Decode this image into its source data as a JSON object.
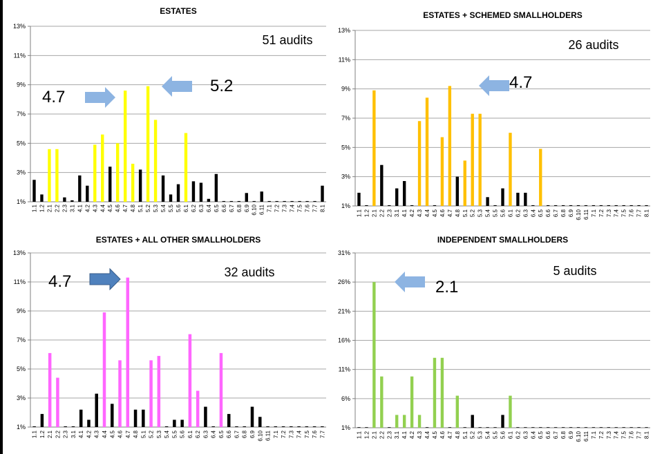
{
  "chart_data": [
    {
      "id": "c1",
      "type": "bar",
      "title": "ESTATES",
      "note": "51 audits",
      "highlight_color": "#ffff00",
      "y_ticks": [
        "13%",
        "11%",
        "9%",
        "7%",
        "5%",
        "3%",
        "1%"
      ],
      "ylim": [
        1,
        13
      ],
      "categories": [
        "1.1",
        "1.2",
        "2.1",
        "2.2",
        "2.3",
        "3.1",
        "4.1",
        "4.2",
        "4.3",
        "4.4",
        "4.5",
        "4.6",
        "4.7",
        "4.8",
        "5.1",
        "5.2",
        "5.3",
        "5.4",
        "5.5",
        "5.6",
        "6.1",
        "6.2",
        "6.3",
        "6.4",
        "6.5",
        "6.6",
        "6.7",
        "6.8",
        "6.9",
        "6.10",
        "6.11",
        "7.1",
        "7.2",
        "7.3",
        "7.4",
        "7.5",
        "7.6",
        "7.7",
        "8.1"
      ],
      "values": [
        2.5,
        1.5,
        4.6,
        4.6,
        1.3,
        1.1,
        2.8,
        2.1,
        4.9,
        5.6,
        3.4,
        5.0,
        8.6,
        3.6,
        3.2,
        8.9,
        6.6,
        2.8,
        1.5,
        2.2,
        5.7,
        2.4,
        2.3,
        1.2,
        2.9,
        1.05,
        1.05,
        1.05,
        1.6,
        1.05,
        1.7,
        1.05,
        1.05,
        1.05,
        1.05,
        1.05,
        1.05,
        1.05,
        2.1
      ],
      "highlight": [
        false,
        false,
        true,
        true,
        false,
        false,
        false,
        false,
        true,
        true,
        false,
        true,
        true,
        true,
        false,
        true,
        true,
        false,
        false,
        false,
        true,
        false,
        false,
        false,
        false,
        false,
        false,
        false,
        false,
        false,
        false,
        false,
        false,
        false,
        false,
        false,
        false,
        false,
        false
      ],
      "annotations": [
        {
          "text": "4.7",
          "arrow": "right",
          "arrow_color": "#8db4e2"
        },
        {
          "text": "5.2",
          "arrow": "left",
          "arrow_color": "#8db4e2"
        }
      ]
    },
    {
      "id": "c2",
      "type": "bar",
      "title": "ESTATES + SCHEMED SMALLHOLDERS",
      "note": "26 audits",
      "highlight_color": "#ffc000",
      "y_ticks": [
        "13%",
        "11%",
        "9%",
        "7%",
        "5%",
        "3%",
        "1%"
      ],
      "ylim": [
        1,
        13
      ],
      "categories": [
        "1.1",
        "1.2",
        "2.1",
        "2.2",
        "2.3",
        "3.1",
        "4.1",
        "4.2",
        "4.3",
        "4.4",
        "4.5",
        "4.6",
        "4.7",
        "4.8",
        "5.1",
        "5.2",
        "5.3",
        "5.4",
        "5.5",
        "5.6",
        "6.1",
        "6.2",
        "6.3",
        "6.4",
        "6.5",
        "6.6",
        "6.7",
        "6.8",
        "6.9",
        "6.10",
        "6.11",
        "7.1",
        "7.2",
        "7.3",
        "7.4",
        "7.5",
        "7.6",
        "7.7",
        "8.1"
      ],
      "values": [
        1.9,
        1.05,
        8.9,
        3.8,
        1.05,
        2.2,
        2.7,
        1.05,
        6.8,
        8.4,
        1.05,
        5.7,
        9.2,
        3.0,
        4.1,
        7.3,
        7.3,
        1.6,
        1.05,
        2.2,
        6.0,
        1.9,
        1.9,
        1.05,
        4.9,
        1.05,
        1.05,
        1.05,
        1.05,
        1.05,
        1.05,
        1.05,
        1.05,
        1.05,
        1.05,
        1.05,
        1.05,
        1.05,
        1.05
      ],
      "highlight": [
        false,
        false,
        true,
        false,
        false,
        false,
        false,
        false,
        true,
        true,
        false,
        true,
        true,
        false,
        true,
        true,
        true,
        false,
        false,
        false,
        true,
        false,
        false,
        false,
        true,
        false,
        false,
        false,
        false,
        false,
        false,
        false,
        false,
        false,
        false,
        false,
        false,
        false,
        false
      ],
      "annotations": [
        {
          "text": "4.7",
          "arrow": "left",
          "arrow_color": "#8db4e2"
        }
      ]
    },
    {
      "id": "c3",
      "type": "bar",
      "title": "ESTATES + ALL OTHER SMALLHOLDERS",
      "note": "32 audits",
      "highlight_color": "#ff66ff",
      "y_ticks": [
        "13%",
        "11%",
        "9%",
        "7%",
        "5%",
        "3%",
        "1%"
      ],
      "ylim": [
        1,
        13
      ],
      "categories": [
        "1.1",
        "1.2",
        "2.1",
        "2.2",
        "2.3",
        "3.1",
        "4.1",
        "4.2",
        "4.3",
        "4.4",
        "4.5",
        "4.6",
        "4.7",
        "4.8",
        "5.1",
        "5.2",
        "5.3",
        "5.4",
        "5.5",
        "5.6",
        "6.1",
        "6.2",
        "6.3",
        "6.4",
        "6.5",
        "6.6",
        "6.7",
        "6.8",
        "6.9",
        "6.10",
        "6.11",
        "7.1",
        "7.2",
        "7.3",
        "7.4",
        "7.5",
        "7.6",
        "7.7"
      ],
      "values": [
        1.05,
        1.9,
        6.1,
        4.4,
        1.05,
        1.05,
        2.2,
        1.5,
        3.3,
        8.9,
        2.6,
        5.6,
        11.3,
        2.2,
        2.2,
        5.6,
        5.9,
        1.05,
        1.5,
        1.5,
        7.4,
        3.5,
        2.4,
        1.05,
        6.1,
        1.9,
        1.05,
        1.05,
        2.4,
        1.7,
        1.05,
        1.05,
        1.05,
        1.05,
        1.05,
        1.05,
        1.05,
        1.05
      ],
      "highlight": [
        false,
        false,
        true,
        true,
        false,
        false,
        false,
        false,
        false,
        true,
        false,
        true,
        true,
        false,
        false,
        true,
        true,
        false,
        false,
        false,
        true,
        true,
        false,
        false,
        true,
        false,
        false,
        false,
        false,
        false,
        false,
        false,
        false,
        false,
        false,
        false,
        false,
        false
      ],
      "annotations": [
        {
          "text": "4.7",
          "arrow": "right",
          "arrow_color": "#4f81bd"
        }
      ]
    },
    {
      "id": "c4",
      "type": "bar",
      "title": "INDEPENDENT SMALLHOLDERS",
      "note": "5 audits",
      "highlight_color": "#92d050",
      "y_ticks": [
        "31%",
        "26%",
        "21%",
        "16%",
        "11%",
        "6%",
        "1%"
      ],
      "ylim": [
        1,
        31
      ],
      "categories": [
        "1.1",
        "1.2",
        "2.1",
        "2.2",
        "2.3",
        "3.1",
        "4.1",
        "4.2",
        "4.3",
        "4.4",
        "4.5",
        "4.6",
        "4.7",
        "4.8",
        "5.1",
        "5.2",
        "5.3",
        "5.4",
        "5.5",
        "5.6",
        "6.1",
        "6.2",
        "6.3",
        "6.4",
        "6.5",
        "6.6",
        "6.7",
        "6.8",
        "6.9",
        "6.10",
        "6.11",
        "7.1",
        "7.2",
        "7.3",
        "7.4",
        "7.5",
        "7.6",
        "7.7",
        "8.1"
      ],
      "values": [
        1.05,
        1.05,
        26.0,
        9.8,
        1.05,
        3.2,
        3.2,
        9.8,
        3.2,
        1.05,
        13.0,
        13.0,
        1.05,
        6.5,
        1.05,
        3.2,
        1.05,
        1.05,
        1.05,
        3.2,
        6.5,
        1.05,
        1.05,
        1.05,
        1.05,
        1.05,
        1.05,
        1.05,
        1.05,
        1.05,
        1.05,
        1.05,
        1.05,
        1.05,
        1.05,
        1.05,
        1.05,
        1.05,
        1.05
      ],
      "highlight": [
        false,
        false,
        true,
        true,
        false,
        true,
        true,
        true,
        true,
        false,
        true,
        true,
        false,
        true,
        false,
        false,
        false,
        false,
        false,
        false,
        true,
        false,
        false,
        false,
        false,
        false,
        false,
        false,
        false,
        false,
        false,
        false,
        false,
        false,
        false,
        false,
        false,
        false,
        false
      ],
      "annotations": [
        {
          "text": "2.1",
          "arrow": "left",
          "arrow_color": "#8db4e2"
        }
      ]
    }
  ]
}
